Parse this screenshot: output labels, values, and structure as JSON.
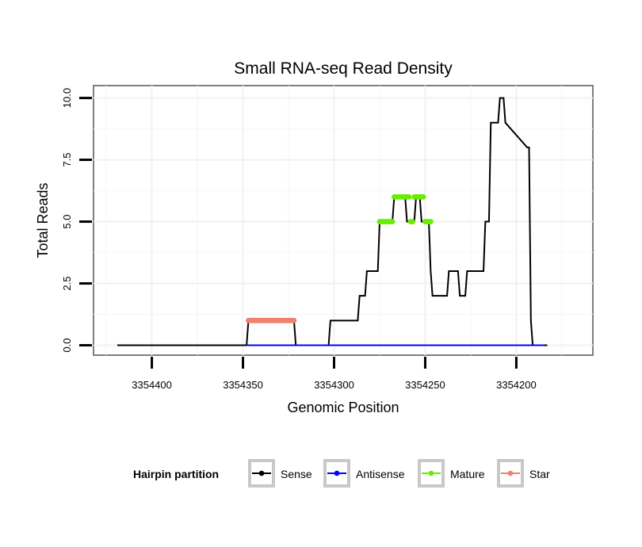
{
  "chart_data": {
    "type": "line",
    "title": "Small RNA-seq Read Density",
    "xlabel": "Genomic Position",
    "ylabel": "Total Reads",
    "xlim": [
      3354432,
      3354158
    ],
    "x_reversed": true,
    "ylim": [
      -0.4,
      10.5
    ],
    "x_ticks": [
      3354400,
      3354350,
      3354300,
      3354250,
      3354200
    ],
    "x_tick_labels": [
      "3354400",
      "3354350",
      "3354300",
      "3354250",
      "3354200"
    ],
    "y_ticks": [
      0,
      2.5,
      5,
      7.5,
      10
    ],
    "y_tick_labels": [
      "0.0",
      "2.5",
      "5.0",
      "7.5",
      "10.0"
    ],
    "grid": true,
    "legend_title": "Hairpin partition",
    "legend_position": "bottom",
    "series": [
      {
        "name": "Sense",
        "color": "#000000",
        "style": "line",
        "x": [
          3354419,
          3354348,
          3354347,
          3354322,
          3354321,
          3354303,
          3354302,
          3354287,
          3354286,
          3354283,
          3354282,
          3354276,
          3354275,
          3354268,
          3354267,
          3354261,
          3354260,
          3354256,
          3354255,
          3354253,
          3354252,
          3354248,
          3354247,
          3354246,
          3354245,
          3354244,
          3354243,
          3354242,
          3354241,
          3354240,
          3354239,
          3354238,
          3354237,
          3354232,
          3354231,
          3354228,
          3354227,
          3354225,
          3354224,
          3354218,
          3354217,
          3354215,
          3354214,
          3354210,
          3354209,
          3354207,
          3354206,
          3354194,
          3354193,
          3354192,
          3354191,
          3354183
        ],
        "y": [
          0,
          0,
          1,
          1,
          0,
          0,
          1,
          1,
          2,
          2,
          3,
          3,
          5,
          5,
          6,
          6,
          5,
          5,
          6,
          6,
          5,
          5,
          3,
          2,
          2,
          2,
          2,
          2,
          2,
          2,
          2,
          2,
          3,
          3,
          2,
          2,
          3,
          3,
          3,
          3,
          5,
          5,
          9,
          9,
          10,
          10,
          9,
          8,
          8,
          1,
          0,
          0
        ]
      },
      {
        "name": "Antisense",
        "color": "#0000ff",
        "style": "line",
        "x": [
          3354348,
          3354185
        ],
        "y": [
          0,
          0
        ]
      },
      {
        "name": "Mature",
        "color": "#66ee00",
        "style": "points",
        "x": [
          3354275,
          3354274,
          3354273,
          3354272,
          3354271,
          3354270,
          3354269,
          3354268,
          3354267,
          3354266,
          3354265,
          3354264,
          3354263,
          3354262,
          3354261,
          3354260,
          3354259,
          3354258,
          3354257,
          3354256,
          3354255,
          3354254,
          3354253,
          3354252,
          3354251,
          3354250,
          3354249,
          3354248,
          3354247
        ],
        "y": [
          5,
          5,
          5,
          5,
          5,
          5,
          5,
          5,
          6,
          6,
          6,
          6,
          6,
          6,
          6,
          6,
          6,
          5,
          5,
          6,
          6,
          6,
          6,
          6,
          6,
          5,
          5,
          5,
          5
        ]
      },
      {
        "name": "Star",
        "color": "#f08070",
        "style": "points",
        "x": [
          3354347,
          3354346,
          3354345,
          3354344,
          3354343,
          3354342,
          3354341,
          3354340,
          3354339,
          3354338,
          3354337,
          3354336,
          3354335,
          3354334,
          3354333,
          3354332,
          3354331,
          3354330,
          3354329,
          3354328,
          3354327,
          3354326,
          3354325,
          3354324,
          3354323,
          3354322
        ],
        "y": [
          1,
          1,
          1,
          1,
          1,
          1,
          1,
          1,
          1,
          1,
          1,
          1,
          1,
          1,
          1,
          1,
          1,
          1,
          1,
          1,
          1,
          1,
          1,
          1,
          1,
          1
        ]
      }
    ]
  }
}
